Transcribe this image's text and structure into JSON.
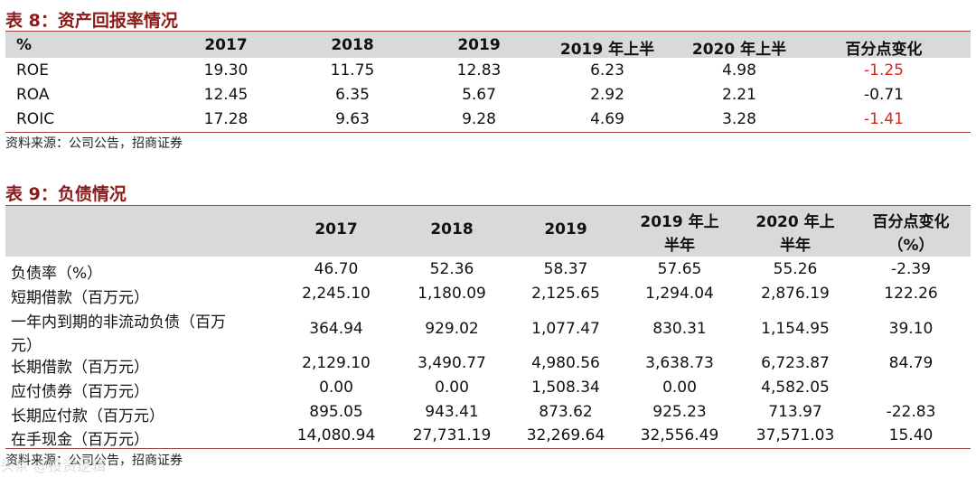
{
  "table8": {
    "title": "表 8：资产回报率情况",
    "headers": [
      "%",
      "2017",
      "2018",
      "2019",
      "2019 年上半",
      "2020 年上半",
      "百分点变化"
    ],
    "rows": [
      {
        "label": "ROE",
        "values": [
          "19.30",
          "11.75",
          "12.83",
          "6.23",
          "4.98",
          "-1.25"
        ]
      },
      {
        "label": "ROA",
        "values": [
          "12.45",
          "6.35",
          "5.67",
          "2.92",
          "2.21",
          "-0.71"
        ]
      },
      {
        "label": "ROIC",
        "values": [
          "17.28",
          "9.63",
          "9.28",
          "4.69",
          "3.28",
          "-1.41"
        ]
      }
    ],
    "source": "资料来源：公司公告，招商证券"
  },
  "table9": {
    "title": "表 9：负债情况",
    "headers": [
      "2017",
      "2018",
      "2019",
      "2019 年上",
      "半年",
      "2020 年上",
      "半年",
      "百分点变化",
      "（%）"
    ],
    "rows": [
      {
        "label": "负债率（%）",
        "values": [
          "46.70",
          "52.36",
          "58.37",
          "57.65",
          "55.26",
          "-2.39"
        ]
      },
      {
        "label": "短期借款（百万元）",
        "values": [
          "2,245.10",
          "1,180.09",
          "2,125.65",
          "1,294.04",
          "2,876.19",
          "122.26"
        ]
      },
      {
        "label": "一年内到期的非流动负债（百万",
        "label2": "元）",
        "values": [
          "364.94",
          "929.02",
          "1,077.47",
          "830.31",
          "1,154.95",
          "39.10"
        ]
      },
      {
        "label": "长期借款（百万元）",
        "values": [
          "2,129.10",
          "3,490.77",
          "4,980.56",
          "3,638.73",
          "6,723.87",
          "84.79"
        ]
      },
      {
        "label": "应付债券（百万元）",
        "values": [
          "0.00",
          "0.00",
          "1,508.34",
          "0.00",
          "4,582.05",
          ""
        ]
      },
      {
        "label": "长期应付款（百万元）",
        "values": [
          "895.05",
          "943.41",
          "873.62",
          "925.23",
          "713.97",
          "-22.83"
        ]
      },
      {
        "label": "在手现金（百万元）",
        "values": [
          "14,080.94",
          "27,731.19",
          "32,269.64",
          "32,556.49",
          "37,571.03",
          "15.40"
        ]
      }
    ],
    "source": "资料来源：公司公告，招商证券"
  },
  "watermark": "头条 @投资逻辑",
  "colors": {
    "title": "#8b1a1a",
    "header_bg": "#d9d9d9",
    "negative": "#e0221e"
  }
}
